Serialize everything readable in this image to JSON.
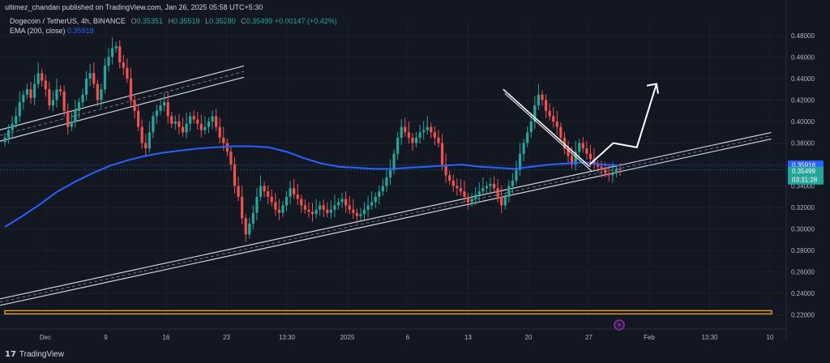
{
  "header": {
    "publisher_line": "ultimez_chandan published on TradingView.com, Jan 26, 2025 05:58 UTC+5:30"
  },
  "legend": {
    "symbol": "Dogecoin / TetherUS, 4h, BINANCE",
    "o_label": "O",
    "o_value": "0.35351",
    "h_label": "H",
    "h_value": "0.35518",
    "l_label": "L",
    "l_value": "0.35280",
    "c_label": "C",
    "c_value": "0.35499",
    "change": "+0.00147 (+0.42%)",
    "ema_label": "EMA (200, close)",
    "ema_value": "0.35918"
  },
  "footer": {
    "brand": "TradingView"
  },
  "colors": {
    "background": "#131722",
    "up": "#26a69a",
    "down": "#ef5350",
    "ema": "#2962ff",
    "channel": "#d1d4dc",
    "support_zone": "#f5a623",
    "axis_text": "#b2b5be"
  },
  "chart_data": {
    "type": "candlestick",
    "y_range": [
      0.21,
      0.495
    ],
    "y_ticks": [
      "0.22000",
      "0.24000",
      "0.26000",
      "0.28000",
      "0.30000",
      "0.32000",
      "0.34000",
      "0.36000",
      "0.38000",
      "0.40000",
      "0.42000",
      "0.44000",
      "0.46000",
      "0.48000"
    ],
    "x_labels": [
      "Dec",
      "9",
      "16",
      "23",
      "13:30",
      "2025",
      "6",
      "13",
      "20",
      "27",
      "Feb",
      "13:30",
      "10"
    ],
    "price_tags": [
      {
        "value": 0.35918,
        "label": "0.35918",
        "color": "#2962ff"
      },
      {
        "value": 0.35499,
        "label": "0.35499",
        "color": "#26a69a",
        "sub": "03:31:28"
      }
    ],
    "close_series": [
      0.385,
      0.392,
      0.398,
      0.405,
      0.418,
      0.425,
      0.43,
      0.422,
      0.435,
      0.445,
      0.438,
      0.43,
      0.415,
      0.42,
      0.43,
      0.428,
      0.41,
      0.395,
      0.4,
      0.41,
      0.418,
      0.425,
      0.44,
      0.445,
      0.435,
      0.42,
      0.43,
      0.452,
      0.46,
      0.468,
      0.47,
      0.455,
      0.45,
      0.44,
      0.42,
      0.41,
      0.395,
      0.38,
      0.375,
      0.39,
      0.405,
      0.41,
      0.415,
      0.418,
      0.405,
      0.398,
      0.4,
      0.395,
      0.39,
      0.398,
      0.405,
      0.402,
      0.398,
      0.392,
      0.395,
      0.4,
      0.405,
      0.395,
      0.385,
      0.38,
      0.372,
      0.36,
      0.34,
      0.33,
      0.31,
      0.295,
      0.305,
      0.315,
      0.33,
      0.34,
      0.335,
      0.33,
      0.325,
      0.318,
      0.315,
      0.322,
      0.33,
      0.338,
      0.332,
      0.328,
      0.322,
      0.318,
      0.316,
      0.314,
      0.318,
      0.322,
      0.318,
      0.315,
      0.318,
      0.322,
      0.325,
      0.328,
      0.322,
      0.318,
      0.315,
      0.312,
      0.314,
      0.318,
      0.322,
      0.325,
      0.33,
      0.335,
      0.34,
      0.348,
      0.355,
      0.37,
      0.385,
      0.395,
      0.39,
      0.385,
      0.38,
      0.385,
      0.39,
      0.392,
      0.395,
      0.39,
      0.385,
      0.38,
      0.36,
      0.35,
      0.345,
      0.34,
      0.338,
      0.335,
      0.33,
      0.325,
      0.328,
      0.332,
      0.335,
      0.338,
      0.34,
      0.342,
      0.338,
      0.33,
      0.322,
      0.33,
      0.34,
      0.345,
      0.355,
      0.37,
      0.38,
      0.39,
      0.4,
      0.415,
      0.425,
      0.42,
      0.41,
      0.405,
      0.4,
      0.395,
      0.385,
      0.375,
      0.368,
      0.36,
      0.372,
      0.38,
      0.375,
      0.37,
      0.365,
      0.36,
      0.358,
      0.355,
      0.352,
      0.35,
      0.352,
      0.356,
      0.355
    ],
    "ema_series": [
      0.302,
      0.312,
      0.323,
      0.335,
      0.344,
      0.352,
      0.359,
      0.364,
      0.368,
      0.371,
      0.373,
      0.375,
      0.376,
      0.377,
      0.377,
      0.376,
      0.372,
      0.366,
      0.361,
      0.358,
      0.357,
      0.356,
      0.356,
      0.357,
      0.358,
      0.359,
      0.36,
      0.358,
      0.357,
      0.356,
      0.358,
      0.36,
      0.361,
      0.362,
      0.36,
      0.359
    ],
    "overlays": {
      "lower_channel": {
        "from": [
          0.0,
          0.232
        ],
        "to": [
          0.95,
          0.383
        ]
      },
      "upper_left_channel": {
        "from": [
          0.0,
          0.387
        ],
        "to": [
          0.3,
          0.445
        ]
      },
      "descending_trendline": {
        "from": [
          0.64,
          0.43
        ],
        "to": [
          0.75,
          0.358
        ]
      },
      "projection_arrow": [
        [
          0.75,
          0.36
        ],
        [
          0.78,
          0.38
        ],
        [
          0.81,
          0.376
        ],
        [
          0.835,
          0.435
        ]
      ],
      "support_zone": [
        0.221,
        0.224
      ]
    }
  }
}
